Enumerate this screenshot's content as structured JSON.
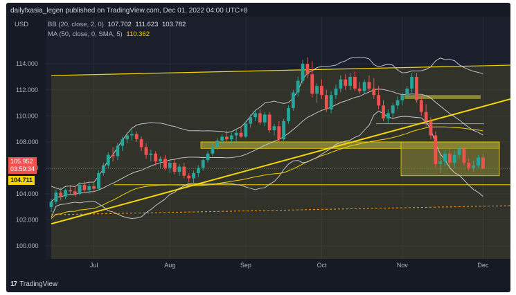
{
  "header": {
    "publisher": "dailyfxasia_legen published on TradingView.com, Dec 01, 2022 04:00 UTC+8",
    "currency": "USD"
  },
  "indicators": [
    {
      "label": "BB (20, close, 2, 0)",
      "values": [
        "107.702",
        "111.623",
        "103.782"
      ],
      "color": "#e0e3eb"
    },
    {
      "label": "MA (50, close, 0, SMA, 5)",
      "values": [
        "110.362"
      ],
      "color": "#f5d500"
    }
  ],
  "current_price": {
    "value": "105.952",
    "countdown": "03:59:34",
    "color": "#ef5350"
  },
  "level_tag": {
    "value": "104.711",
    "color": "#f5d500"
  },
  "footer": {
    "logo": "17",
    "brand": "TradingView"
  },
  "colors": {
    "up": "#26a69a",
    "down": "#ef5350",
    "bb": "#d1d4dc",
    "ma": "#f5d500",
    "zone": "#5d5a2c"
  },
  "chart_data": {
    "type": "candlestick",
    "ylim": [
      99.0,
      115.5
    ],
    "y_ticks": [
      "114.000",
      "112.000",
      "110.000",
      "108.000",
      "106.000",
      "104.000",
      "102.000",
      "100.000"
    ],
    "x_ticks": [
      "Jul",
      "Aug",
      "Sep",
      "Oct",
      "Nov",
      "Dec"
    ],
    "candles": [
      [
        103.0,
        103.6,
        102.6,
        103.4
      ],
      [
        103.4,
        104.3,
        103.2,
        104.1
      ],
      [
        104.1,
        104.5,
        103.5,
        103.8
      ],
      [
        103.8,
        104.4,
        103.6,
        104.3
      ],
      [
        104.3,
        104.7,
        103.9,
        104.2
      ],
      [
        104.2,
        104.6,
        103.8,
        104.0
      ],
      [
        104.0,
        104.9,
        103.9,
        104.7
      ],
      [
        104.7,
        105.0,
        104.1,
        104.3
      ],
      [
        104.3,
        104.8,
        104.0,
        104.6
      ],
      [
        104.6,
        104.9,
        104.2,
        104.4
      ],
      [
        104.4,
        105.8,
        104.3,
        105.6
      ],
      [
        105.6,
        106.4,
        105.4,
        106.2
      ],
      [
        106.2,
        107.2,
        106.0,
        107.0
      ],
      [
        107.0,
        107.6,
        106.5,
        106.9
      ],
      [
        106.9,
        107.9,
        106.6,
        107.7
      ],
      [
        107.7,
        108.4,
        107.3,
        108.2
      ],
      [
        108.2,
        108.7,
        107.9,
        108.5
      ],
      [
        108.5,
        108.9,
        108.1,
        108.6
      ],
      [
        108.6,
        108.8,
        108.0,
        108.2
      ],
      [
        108.2,
        108.4,
        107.3,
        107.6
      ],
      [
        107.6,
        107.9,
        106.7,
        107.0
      ],
      [
        107.0,
        107.4,
        106.5,
        107.1
      ],
      [
        107.1,
        107.3,
        106.2,
        106.5
      ],
      [
        106.5,
        106.9,
        106.0,
        106.7
      ],
      [
        106.7,
        107.0,
        105.8,
        106.0
      ],
      [
        106.0,
        106.6,
        105.6,
        106.4
      ],
      [
        106.4,
        106.7,
        105.5,
        105.7
      ],
      [
        105.7,
        106.3,
        105.4,
        106.1
      ],
      [
        106.1,
        106.4,
        105.2,
        105.4
      ],
      [
        105.4,
        105.6,
        104.9,
        105.2
      ],
      [
        105.2,
        105.8,
        104.8,
        105.6
      ],
      [
        105.6,
        106.2,
        105.3,
        106.0
      ],
      [
        106.0,
        106.7,
        105.8,
        106.6
      ],
      [
        106.6,
        107.3,
        106.4,
        107.1
      ],
      [
        107.1,
        107.9,
        106.9,
        107.6
      ],
      [
        107.6,
        108.3,
        107.4,
        108.1
      ],
      [
        108.1,
        108.6,
        107.8,
        108.4
      ],
      [
        108.4,
        108.9,
        107.9,
        108.2
      ],
      [
        108.2,
        108.7,
        107.9,
        108.5
      ],
      [
        108.5,
        109.0,
        108.0,
        108.7
      ],
      [
        108.7,
        109.2,
        108.3,
        108.4
      ],
      [
        108.4,
        109.6,
        108.3,
        109.4
      ],
      [
        109.4,
        110.1,
        109.1,
        109.9
      ],
      [
        109.9,
        110.4,
        109.6,
        110.2
      ],
      [
        110.2,
        110.5,
        109.3,
        109.5
      ],
      [
        109.5,
        110.3,
        109.2,
        110.1
      ],
      [
        110.1,
        110.3,
        108.7,
        108.9
      ],
      [
        108.9,
        109.4,
        108.5,
        109.2
      ],
      [
        109.2,
        109.6,
        108.0,
        108.2
      ],
      [
        108.2,
        109.8,
        108.1,
        109.6
      ],
      [
        109.6,
        110.8,
        109.4,
        110.6
      ],
      [
        110.6,
        112.0,
        110.4,
        111.8
      ],
      [
        111.8,
        113.0,
        111.5,
        112.7
      ],
      [
        112.7,
        114.3,
        112.5,
        114.0
      ],
      [
        114.0,
        114.5,
        112.9,
        113.2
      ],
      [
        113.2,
        114.2,
        111.4,
        111.7
      ],
      [
        111.7,
        112.5,
        111.0,
        112.3
      ],
      [
        112.3,
        112.8,
        111.3,
        111.6
      ],
      [
        111.6,
        112.0,
        110.3,
        110.5
      ],
      [
        110.5,
        111.9,
        110.2,
        111.6
      ],
      [
        111.6,
        112.4,
        111.3,
        112.1
      ],
      [
        112.1,
        113.1,
        111.8,
        112.8
      ],
      [
        112.8,
        113.2,
        112.0,
        112.3
      ],
      [
        112.3,
        113.3,
        112.0,
        113.0
      ],
      [
        113.0,
        113.4,
        111.9,
        112.1
      ],
      [
        112.1,
        112.6,
        111.7,
        111.9
      ],
      [
        111.9,
        112.8,
        111.7,
        112.6
      ],
      [
        112.6,
        113.1,
        111.9,
        112.1
      ],
      [
        112.1,
        112.9,
        111.3,
        111.6
      ],
      [
        111.6,
        112.3,
        110.5,
        110.8
      ],
      [
        110.8,
        111.2,
        109.6,
        109.8
      ],
      [
        109.8,
        110.5,
        109.4,
        110.2
      ],
      [
        110.2,
        111.0,
        109.9,
        110.8
      ],
      [
        110.8,
        111.5,
        110.5,
        111.2
      ],
      [
        111.2,
        111.8,
        110.8,
        111.6
      ],
      [
        111.6,
        112.3,
        111.3,
        112.1
      ],
      [
        112.1,
        113.3,
        111.8,
        113.0
      ],
      [
        113.0,
        113.3,
        111.0,
        111.2
      ],
      [
        111.2,
        111.6,
        110.0,
        110.3
      ],
      [
        110.3,
        110.9,
        109.2,
        109.6
      ],
      [
        109.6,
        109.9,
        108.2,
        108.5
      ],
      [
        108.5,
        108.8,
        106.0,
        106.3
      ],
      [
        106.3,
        107.0,
        105.6,
        106.5
      ],
      [
        106.5,
        107.4,
        106.1,
        107.1
      ],
      [
        107.1,
        107.5,
        106.1,
        106.4
      ],
      [
        106.4,
        107.3,
        106.0,
        107.0
      ],
      [
        107.0,
        107.8,
        106.7,
        107.5
      ],
      [
        107.5,
        107.6,
        106.2,
        106.4
      ],
      [
        106.4,
        106.7,
        105.8,
        106.0
      ],
      [
        106.0,
        106.6,
        105.7,
        106.2
      ],
      [
        106.2,
        107.0,
        106.0,
        106.8
      ],
      [
        106.8,
        107.1,
        105.9,
        105.95
      ]
    ]
  }
}
